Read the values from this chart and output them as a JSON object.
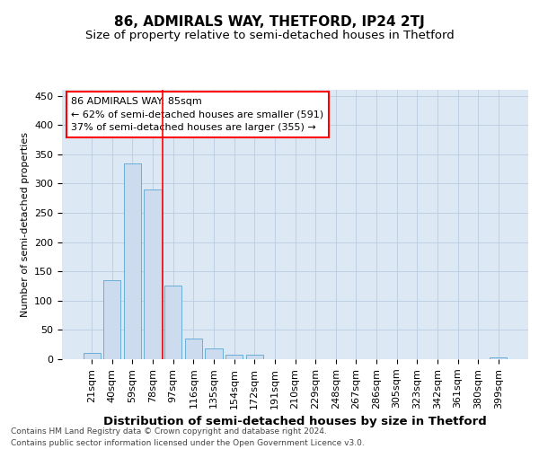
{
  "title": "86, ADMIRALS WAY, THETFORD, IP24 2TJ",
  "subtitle": "Size of property relative to semi-detached houses in Thetford",
  "xlabel": "Distribution of semi-detached houses by size in Thetford",
  "ylabel": "Number of semi-detached properties",
  "footnote": "Contains HM Land Registry data © Crown copyright and database right 2024.\nContains public sector information licensed under the Open Government Licence v3.0.",
  "categories": [
    "21sqm",
    "40sqm",
    "59sqm",
    "78sqm",
    "97sqm",
    "116sqm",
    "135sqm",
    "154sqm",
    "172sqm",
    "191sqm",
    "210sqm",
    "229sqm",
    "248sqm",
    "267sqm",
    "286sqm",
    "305sqm",
    "323sqm",
    "342sqm",
    "361sqm",
    "380sqm",
    "399sqm"
  ],
  "values": [
    10,
    135,
    335,
    290,
    125,
    35,
    19,
    7,
    7,
    0,
    0,
    0,
    0,
    0,
    0,
    0,
    0,
    0,
    0,
    0,
    3
  ],
  "bar_color": "#ccdcee",
  "bar_edge_color": "#6aaed6",
  "vline_x": 3.5,
  "vline_color": "red",
  "annotation_line1": "86 ADMIRALS WAY: 85sqm",
  "annotation_line2": "← 62% of semi-detached houses are smaller (591)",
  "annotation_line3": "37% of semi-detached houses are larger (355) →",
  "annotation_box_color": "white",
  "annotation_box_edge": "red",
  "ylim": [
    0,
    460
  ],
  "yticks": [
    0,
    50,
    100,
    150,
    200,
    250,
    300,
    350,
    400,
    450
  ],
  "grid_color": "#bbcce0",
  "plot_bg_color": "#dce9f5",
  "title_fontsize": 11,
  "subtitle_fontsize": 9.5,
  "xlabel_fontsize": 9.5,
  "ylabel_fontsize": 8,
  "tick_fontsize": 8,
  "annot_fontsize": 8,
  "footnote_fontsize": 6.5
}
